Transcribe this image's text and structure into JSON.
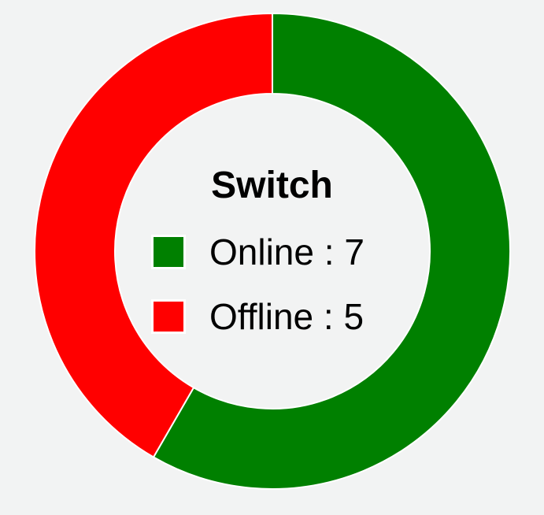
{
  "chart_data": {
    "type": "pie",
    "title": "Switch",
    "categories": [
      "Online",
      "Offline"
    ],
    "values": [
      7,
      5
    ],
    "colors": [
      "#008000",
      "#ff0000"
    ],
    "legend_separator": " : ",
    "legend_placement": "center",
    "donut": true
  }
}
